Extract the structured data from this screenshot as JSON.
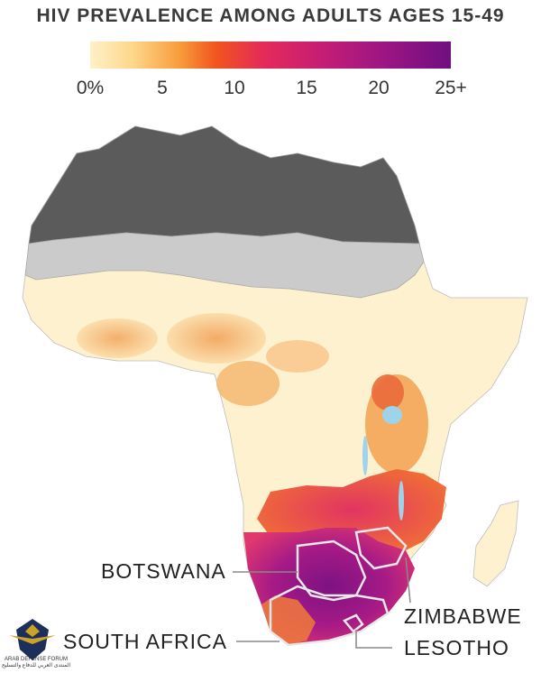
{
  "title": "HIV PREVALENCE AMONG ADULTS AGES 15-49",
  "legend": {
    "ticks": [
      "0%",
      "5",
      "10",
      "15",
      "20",
      "25+"
    ]
  },
  "labels": {
    "botswana": "BOTSWANA",
    "zimbabwe": "ZIMBABWE",
    "south_africa": "SOUTH AFRICA",
    "lesotho": "LESOTHO"
  },
  "watermark": {
    "line1": "ARAB DEFENSE FORUM",
    "line2": "المنتدى العربي للدفاع والتسليح"
  },
  "colors": {
    "no_data_north": "#5a5a5a",
    "no_data_sahel": "#c9c9c9",
    "low": "#fdf3d0",
    "medium": "#f5a24a",
    "high": "#e53a4a",
    "very_high": "#8e1a86",
    "water": "#9fd3ea"
  }
}
